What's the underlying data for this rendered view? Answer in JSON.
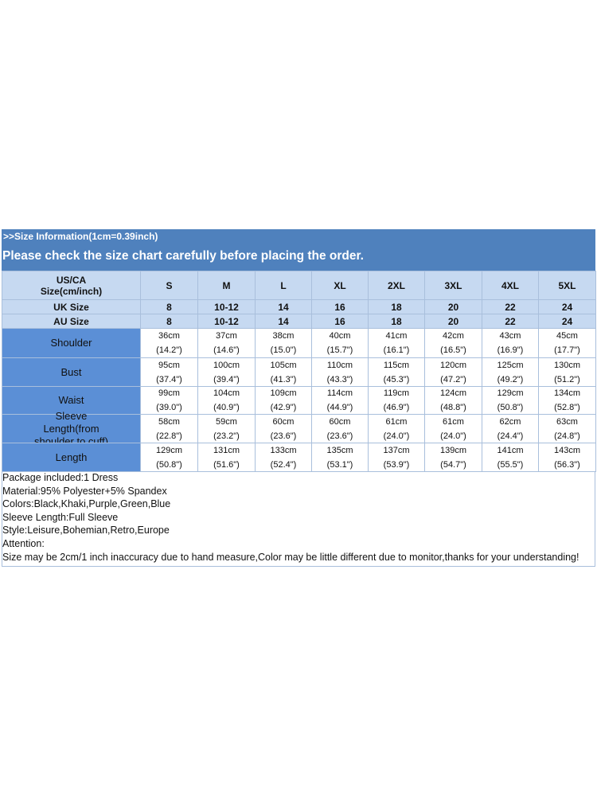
{
  "header": {
    "info": ">>Size Information(1cm=0.39inch)",
    "notice": "Please check the size chart carefully before placing the order."
  },
  "table": {
    "head": {
      "label": [
        "US/CA",
        "Size(cm/inch)"
      ],
      "sizes": [
        "S",
        "M",
        "L",
        "XL",
        "2XL",
        "3XL",
        "4XL",
        "5XL"
      ]
    },
    "uk": {
      "label": "UK Size",
      "values": [
        "8",
        "10-12",
        "14",
        "16",
        "18",
        "20",
        "22",
        "24"
      ]
    },
    "au": {
      "label": "AU Size",
      "values": [
        "8",
        "10-12",
        "14",
        "16",
        "18",
        "20",
        "22",
        "24"
      ]
    },
    "rows": [
      {
        "label": "Shoulder",
        "cells": [
          [
            "36cm",
            "(14.2\")"
          ],
          [
            "37cm",
            "(14.6\")"
          ],
          [
            "38cm",
            "(15.0\")"
          ],
          [
            "40cm",
            "(15.7\")"
          ],
          [
            "41cm",
            "(16.1\")"
          ],
          [
            "42cm",
            "(16.5\")"
          ],
          [
            "43cm",
            "(16.9\")"
          ],
          [
            "45cm",
            "(17.7\")"
          ]
        ]
      },
      {
        "label": "Bust",
        "cells": [
          [
            "95cm",
            "(37.4\")"
          ],
          [
            "100cm",
            "(39.4\")"
          ],
          [
            "105cm",
            "(41.3\")"
          ],
          [
            "110cm",
            "(43.3\")"
          ],
          [
            "115cm",
            "(45.3\")"
          ],
          [
            "120cm",
            "(47.2\")"
          ],
          [
            "125cm",
            "(49.2\")"
          ],
          [
            "130cm",
            "(51.2\")"
          ]
        ]
      },
      {
        "label": "Waist",
        "cells": [
          [
            "99cm",
            "(39.0\")"
          ],
          [
            "104cm",
            "(40.9\")"
          ],
          [
            "109cm",
            "(42.9\")"
          ],
          [
            "114cm",
            "(44.9\")"
          ],
          [
            "119cm",
            "(46.9\")"
          ],
          [
            "124cm",
            "(48.8\")"
          ],
          [
            "129cm",
            "(50.8\")"
          ],
          [
            "134cm",
            "(52.8\")"
          ]
        ]
      },
      {
        "label": "Sleeve Length(from shoulder to cuff)",
        "cells": [
          [
            "58cm",
            "(22.8\")"
          ],
          [
            "59cm",
            "(23.2\")"
          ],
          [
            "60cm",
            "(23.6\")"
          ],
          [
            "60cm",
            "(23.6\")"
          ],
          [
            "61cm",
            "(24.0\")"
          ],
          [
            "61cm",
            "(24.0\")"
          ],
          [
            "62cm",
            "(24.4\")"
          ],
          [
            "63cm",
            "(24.8\")"
          ]
        ]
      },
      {
        "label": "Length",
        "cells": [
          [
            "129cm",
            "(50.8\")"
          ],
          [
            "131cm",
            "(51.6\")"
          ],
          [
            "133cm",
            "(52.4\")"
          ],
          [
            "135cm",
            "(53.1\")"
          ],
          [
            "137cm",
            "(53.9\")"
          ],
          [
            "139cm",
            "(54.7\")"
          ],
          [
            "141cm",
            "(55.5\")"
          ],
          [
            "143cm",
            "(56.3\")"
          ]
        ]
      }
    ]
  },
  "notes": [
    "Package included:1 Dress",
    "Material:95% Polyester+5% Spandex",
    "Colors:Black,Khaki,Purple,Green,Blue",
    "Sleeve Length:Full Sleeve",
    "Style:Leisure,Bohemian,Retro,Europe",
    "Attention:",
    "Size may be 2cm/1 inch inaccuracy due to hand measure,Color may be little different due to monitor,thanks for your understanding!"
  ]
}
